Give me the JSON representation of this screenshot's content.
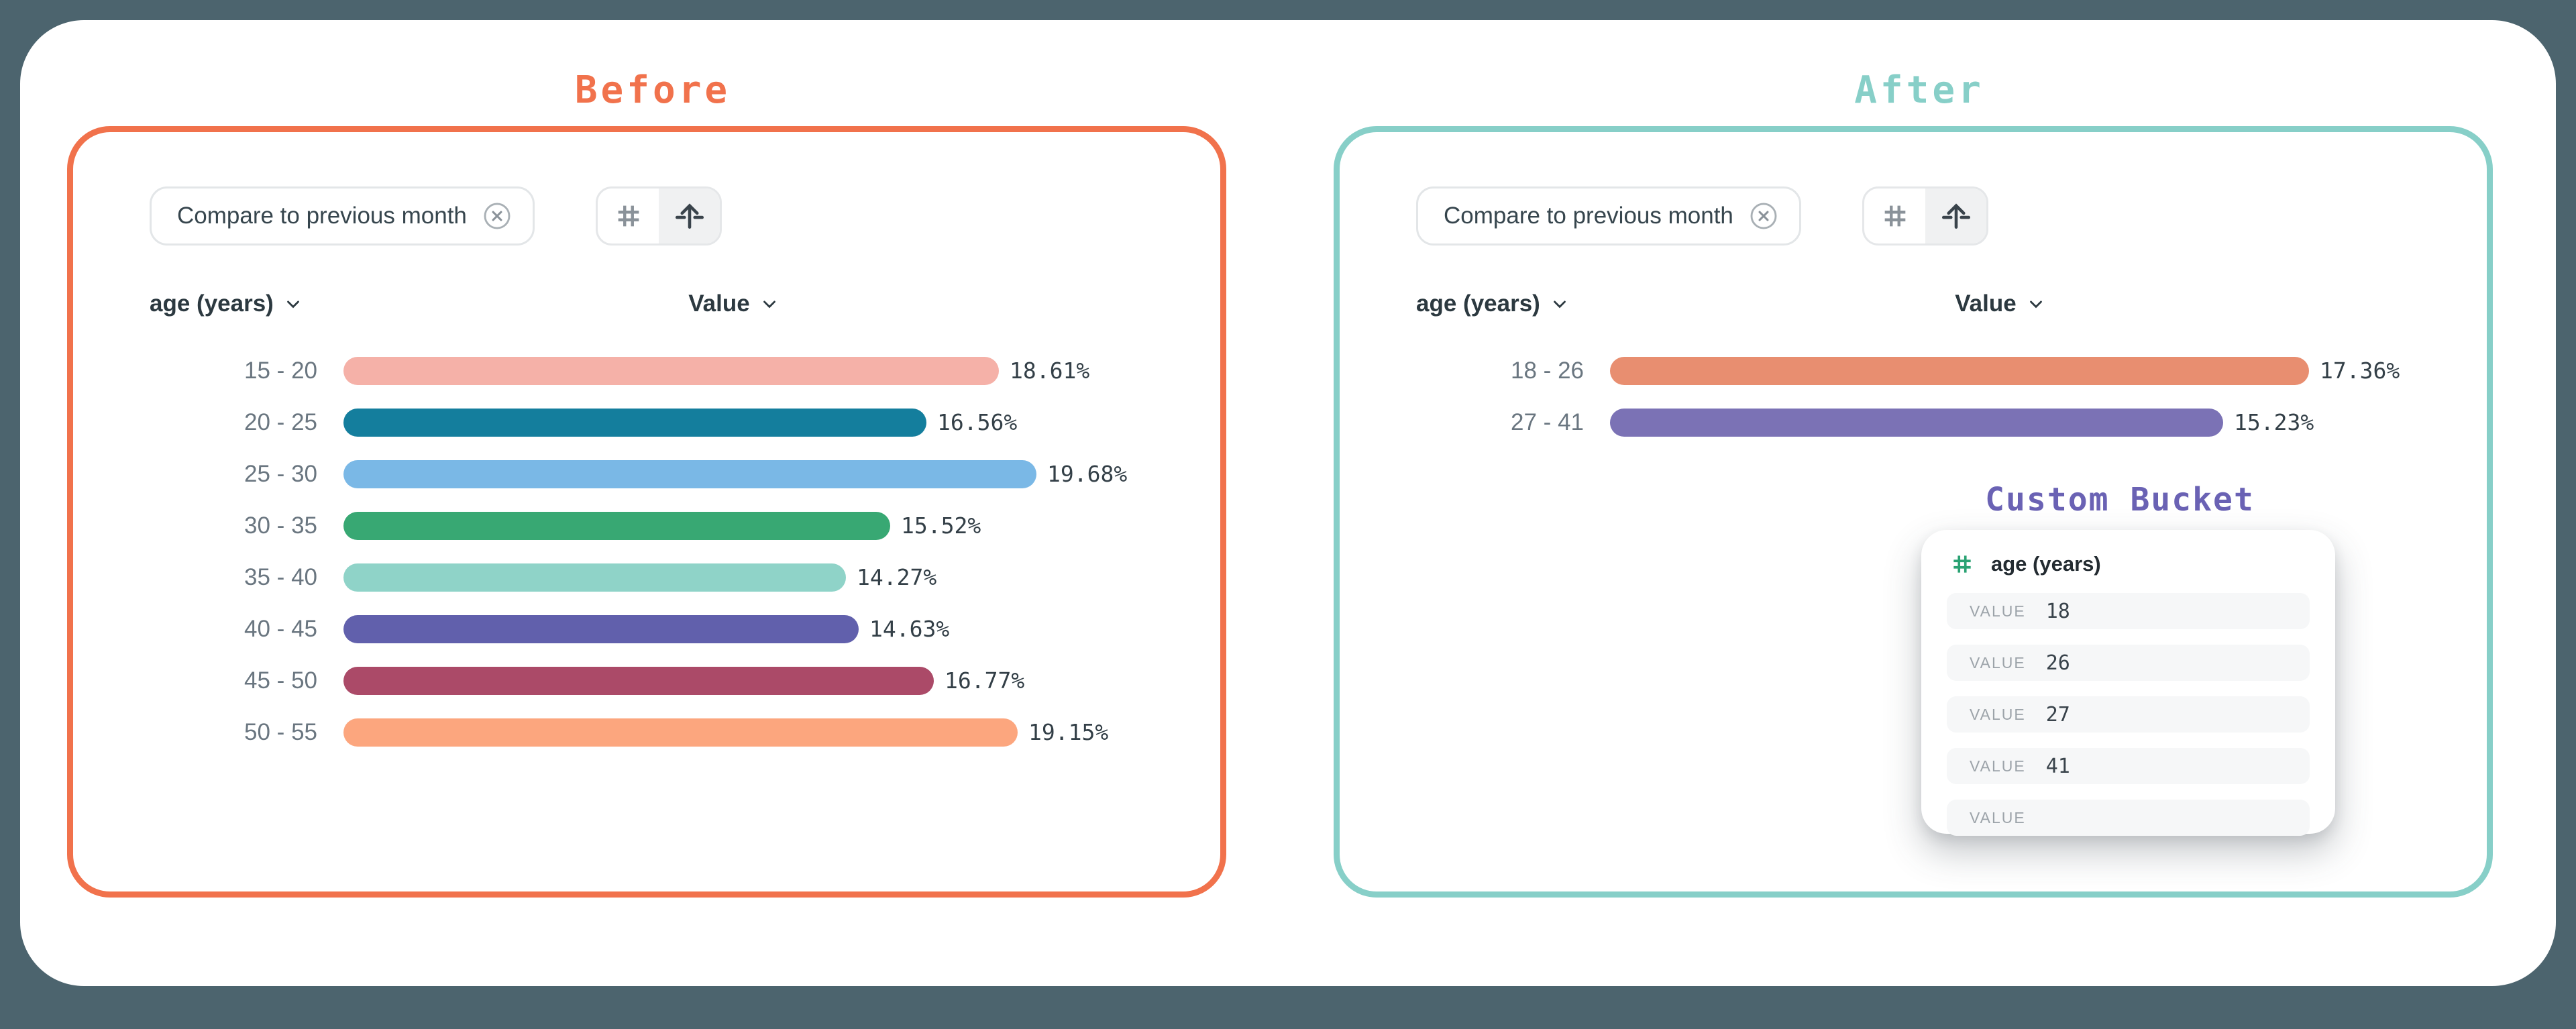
{
  "before": {
    "title": "Before",
    "accent_color": "#F1724C",
    "filter_chip": {
      "label": "Compare to previous month"
    },
    "toolbar": {
      "icons": [
        {
          "name": "hash",
          "active": false,
          "color": "#8A9299"
        },
        {
          "name": "arrow-up-from-line",
          "active": true,
          "color": "#39434B"
        }
      ]
    },
    "columns": {
      "dimension": "age (years)",
      "value": "Value"
    }
  },
  "after": {
    "title": "After",
    "accent_color": "#87CFC8",
    "filter_chip": {
      "label": "Compare to previous month"
    },
    "toolbar": {
      "icons": [
        {
          "name": "hash",
          "active": false,
          "color": "#8A9299"
        },
        {
          "name": "arrow-up-from-line",
          "active": true,
          "color": "#39434B"
        }
      ]
    },
    "columns": {
      "dimension": "age (years)",
      "value": "Value"
    },
    "custom_bucket": {
      "title": "Custom Bucket",
      "accent_color": "#6A62B4",
      "field_label": "age (years)",
      "field_icon_color": "#2AA273",
      "rows": [
        {
          "label": "VALUE",
          "value": "18"
        },
        {
          "label": "VALUE",
          "value": "26"
        },
        {
          "label": "VALUE",
          "value": "27"
        },
        {
          "label": "VALUE",
          "value": "41"
        },
        {
          "label": "VALUE",
          "value": ""
        }
      ]
    }
  },
  "chart_data": [
    {
      "id": "before",
      "type": "bar",
      "orientation": "horizontal",
      "title": "Before",
      "dimension": "age (years)",
      "value_column": "Value",
      "categories": [
        "15 - 20",
        "20 - 25",
        "25 - 30",
        "30 - 35",
        "35 - 40",
        "40 - 45",
        "45 - 50",
        "50 - 55"
      ],
      "values": [
        18.61,
        16.56,
        19.68,
        15.52,
        14.27,
        14.63,
        16.77,
        19.15
      ],
      "value_labels": [
        "18.61%",
        "16.56%",
        "19.68%",
        "15.52%",
        "14.27%",
        "14.63%",
        "16.77%",
        "19.15%"
      ],
      "colors": [
        "#F5B1A8",
        "#147E9D",
        "#7AB8E6",
        "#38A873",
        "#8FD3C8",
        "#6160AC",
        "#AB4A68",
        "#FCA67E"
      ],
      "unit": "%",
      "legend": false,
      "grid": false
    },
    {
      "id": "after",
      "type": "bar",
      "orientation": "horizontal",
      "title": "After",
      "dimension": "age (years)",
      "value_column": "Value",
      "categories": [
        "18 - 26",
        "27 - 41"
      ],
      "values": [
        17.36,
        15.23
      ],
      "value_labels": [
        "17.36%",
        "15.23%"
      ],
      "colors": [
        "#E88E70",
        "#7B72B5"
      ],
      "unit": "%",
      "legend": false,
      "grid": false
    }
  ]
}
